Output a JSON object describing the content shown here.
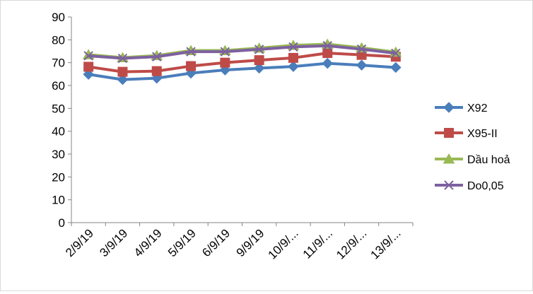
{
  "chart_data": {
    "type": "line",
    "title": "",
    "xlabel": "",
    "ylabel": "",
    "categories": [
      "2/9/19",
      "3/9/19",
      "4/9/19",
      "5/9/19",
      "6/9/19",
      "9/9/19",
      "10/9/...",
      "11/9/...",
      "12/9/...",
      "13/9/..."
    ],
    "ylim": [
      0,
      90
    ],
    "yticks": [
      "0",
      "10",
      "20",
      "30",
      "40",
      "50",
      "60",
      "70",
      "80",
      "90"
    ],
    "grid": false,
    "legend": "right",
    "series": [
      {
        "name": "X92",
        "color": "#4a7ebb",
        "marker": "diamond",
        "values": [
          64.9,
          62.6,
          63.2,
          65.4,
          66.8,
          67.6,
          68.3,
          69.7,
          68.9,
          67.9
        ]
      },
      {
        "name": "X95-II",
        "color": "#be4b48",
        "marker": "square",
        "values": [
          68.2,
          66.0,
          66.3,
          68.5,
          70.0,
          71.1,
          72.1,
          74.2,
          73.4,
          72.6
        ]
      },
      {
        "name": "Dầu hoả",
        "color": "#98b954",
        "marker": "triangle",
        "values": [
          73.5,
          72.2,
          73.1,
          75.3,
          75.3,
          76.4,
          77.6,
          78.1,
          76.5,
          74.6
        ]
      },
      {
        "name": "Do0,05",
        "color": "#7d60a0",
        "marker": "x",
        "values": [
          73.0,
          71.9,
          72.6,
          74.8,
          74.8,
          75.8,
          76.9,
          77.4,
          75.9,
          74.1
        ]
      }
    ]
  }
}
